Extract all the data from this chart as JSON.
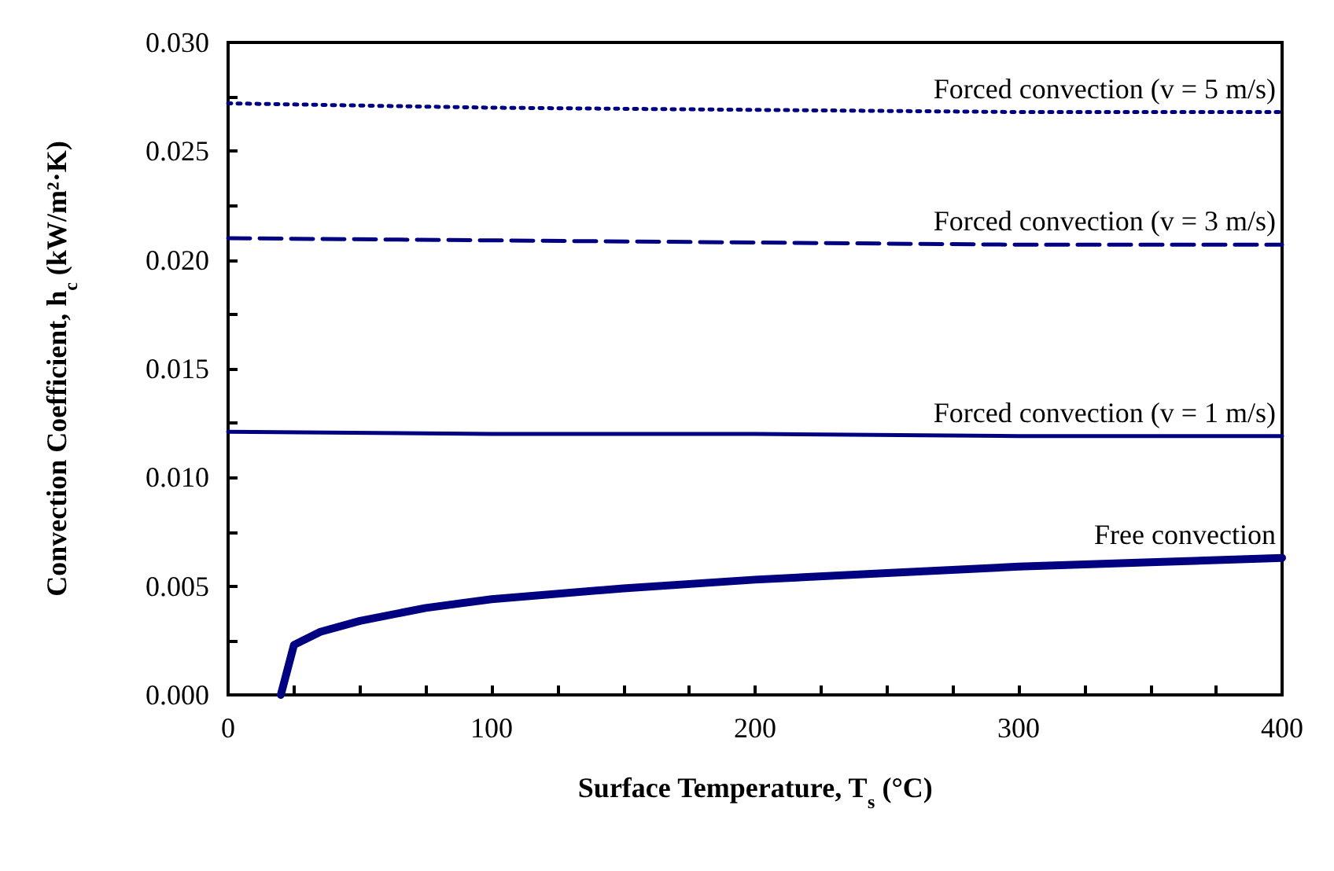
{
  "chart_data": {
    "type": "line",
    "xlabel": "Surface Temperature, T$_{s}$ (°C)",
    "ylabel": "Convection Coefficient, h$_{c}$ (kW/m²·K)",
    "xlim": [
      0,
      400
    ],
    "xticks": [
      0,
      {
        "value": 25,
        "label": null
      },
      {
        "value": 50,
        "label": null
      },
      {
        "value": 75,
        "label": null
      },
      100,
      {
        "value": 125,
        "label": null
      },
      {
        "value": 150,
        "label": null
      },
      {
        "value": 175,
        "label": null
      },
      200,
      {
        "value": 225,
        "label": null
      },
      {
        "value": 250,
        "label": null
      },
      {
        "value": 275,
        "label": null
      },
      300,
      {
        "value": 325,
        "label": null
      },
      {
        "value": 350,
        "label": null
      },
      {
        "value": 375,
        "label": null
      },
      400
    ],
    "ylim": [
      0,
      0.03
    ],
    "yticks": [
      {
        "value": 0,
        "label": "0.000"
      },
      {
        "value": 0.0025,
        "label": null
      },
      {
        "value": 0.005,
        "label": "0.005"
      },
      {
        "value": 0.0075,
        "label": null
      },
      {
        "value": 0.01,
        "label": "0.010"
      },
      {
        "value": 0.0125,
        "label": null
      },
      {
        "value": 0.015,
        "label": "0.015"
      },
      {
        "value": 0.0175,
        "label": null
      },
      {
        "value": 0.02,
        "label": "0.020"
      },
      {
        "value": 0.0225,
        "label": null
      },
      {
        "value": 0.025,
        "label": "0.025"
      },
      {
        "value": 0.0275,
        "label": null
      },
      {
        "value": 0.03,
        "label": "0.030"
      }
    ],
    "grid": false,
    "legend": false,
    "marker": "none",
    "series": [
      {
        "name": "Free convection",
        "color": "#000080",
        "line_style": "solid",
        "x": [
          20,
          25,
          35,
          50,
          75,
          100,
          150,
          200,
          250,
          300,
          350,
          400
        ],
        "values": [
          0,
          0.0023,
          0.0029,
          0.0034,
          0.004,
          0.0044,
          0.0049,
          0.0053,
          0.0056,
          0.0059,
          0.0061,
          0.0063
        ]
      },
      {
        "name": "Forced convection (v = 1 m/s)",
        "color": "#000080",
        "line_style": "solid",
        "x": [
          0,
          100,
          200,
          300,
          400
        ],
        "values": [
          0.0121,
          0.012,
          0.012,
          0.0119,
          0.0119
        ]
      },
      {
        "name": "Forced convection (v = 3 m/s)",
        "color": "#000080",
        "line_style": "dashed",
        "x": [
          0,
          100,
          200,
          300,
          400
        ],
        "values": [
          0.021,
          0.0209,
          0.0208,
          0.0207,
          0.0207
        ]
      },
      {
        "name": "Forced convection (v = 5 m/s)",
        "color": "#000080",
        "line_style": "dotted",
        "x": [
          0,
          100,
          200,
          300,
          400
        ],
        "values": [
          0.0272,
          0.027,
          0.0269,
          0.0268,
          0.0268
        ]
      }
    ]
  }
}
